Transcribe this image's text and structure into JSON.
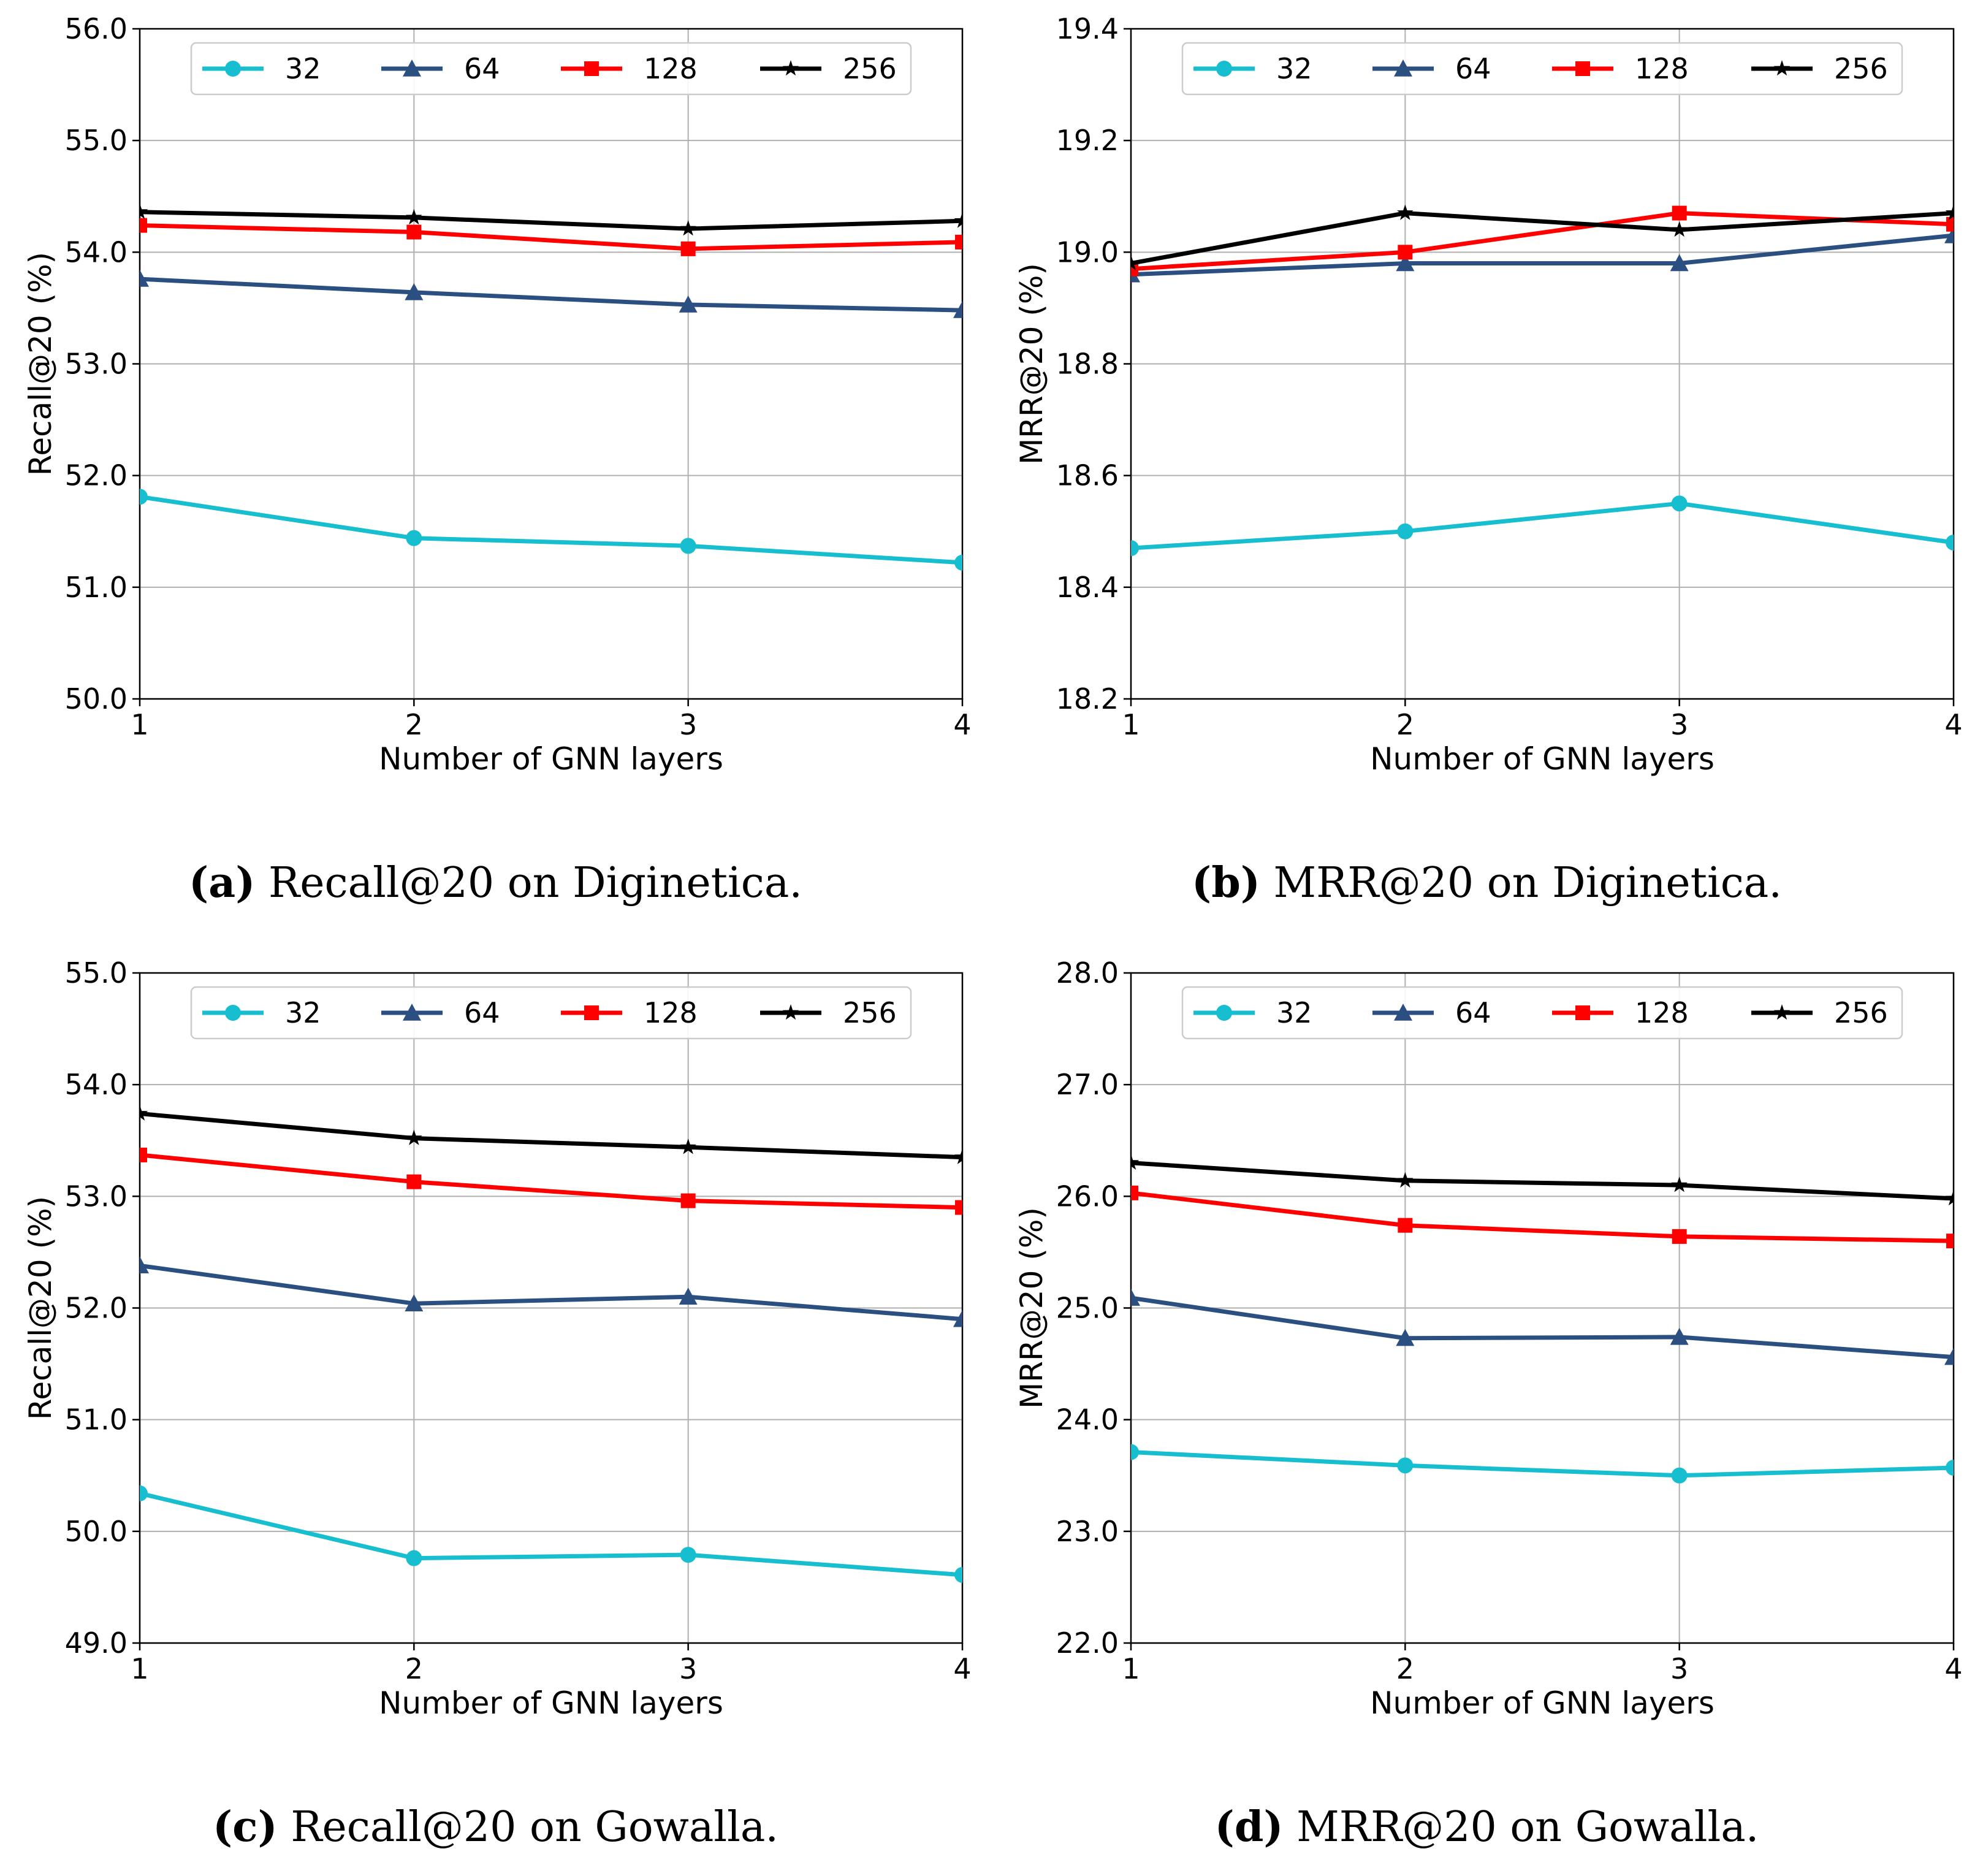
{
  "colors": {
    "s32": "#17becf",
    "s64": "#2b4f81",
    "s128": "#ff0000",
    "s256": "#000000",
    "grid": "#b0b0b0"
  },
  "captions": [
    {
      "tag": "(a)",
      "text": "Recall@20 on Diginetica."
    },
    {
      "tag": "(b)",
      "text": "MRR@20 on Diginetica."
    },
    {
      "tag": "(c)",
      "text": "Recall@20 on Gowalla."
    },
    {
      "tag": "(d)",
      "text": "MRR@20 on Gowalla."
    }
  ],
  "chart_data": [
    {
      "type": "line",
      "title": "(a) Recall@20 on Diginetica.",
      "xlabel": "Number of GNN layers",
      "ylabel": "Recall@20 (%)",
      "x": [
        1,
        2,
        3,
        4
      ],
      "xticks": [
        "1",
        "2",
        "3",
        "4"
      ],
      "ylim": [
        50.0,
        56.0
      ],
      "yticks": [
        "50.0",
        "51.0",
        "52.0",
        "53.0",
        "54.0",
        "55.0",
        "56.0"
      ],
      "legend": "top-center",
      "grid": true,
      "series": [
        {
          "name": "32",
          "marker": "circle",
          "values": [
            51.81,
            51.44,
            51.37,
            51.22
          ]
        },
        {
          "name": "64",
          "marker": "triangle",
          "values": [
            53.76,
            53.64,
            53.53,
            53.48
          ]
        },
        {
          "name": "128",
          "marker": "square",
          "values": [
            54.24,
            54.18,
            54.03,
            54.09
          ]
        },
        {
          "name": "256",
          "marker": "star",
          "values": [
            54.36,
            54.31,
            54.21,
            54.28
          ]
        }
      ]
    },
    {
      "type": "line",
      "title": "(b) MRR@20 on Diginetica.",
      "xlabel": "Number of GNN layers",
      "ylabel": "MRR@20 (%)",
      "x": [
        1,
        2,
        3,
        4
      ],
      "xticks": [
        "1",
        "2",
        "3",
        "4"
      ],
      "ylim": [
        18.2,
        19.4
      ],
      "yticks": [
        "18.2",
        "18.4",
        "18.6",
        "18.8",
        "19.0",
        "19.2",
        "19.4"
      ],
      "legend": "top-center",
      "grid": true,
      "series": [
        {
          "name": "32",
          "marker": "circle",
          "values": [
            18.47,
            18.5,
            18.55,
            18.48
          ]
        },
        {
          "name": "64",
          "marker": "triangle",
          "values": [
            18.96,
            18.98,
            18.98,
            19.03
          ]
        },
        {
          "name": "128",
          "marker": "square",
          "values": [
            18.97,
            19.0,
            19.07,
            19.05
          ]
        },
        {
          "name": "256",
          "marker": "star",
          "values": [
            18.98,
            19.07,
            19.04,
            19.07
          ]
        }
      ]
    },
    {
      "type": "line",
      "title": "(c) Recall@20 on Gowalla.",
      "xlabel": "Number of GNN layers",
      "ylabel": "Recall@20 (%)",
      "x": [
        1,
        2,
        3,
        4
      ],
      "xticks": [
        "1",
        "2",
        "3",
        "4"
      ],
      "ylim": [
        49.0,
        55.0
      ],
      "yticks": [
        "49.0",
        "50.0",
        "51.0",
        "52.0",
        "53.0",
        "54.0",
        "55.0"
      ],
      "legend": "top-center",
      "grid": true,
      "series": [
        {
          "name": "32",
          "marker": "circle",
          "values": [
            50.34,
            49.76,
            49.79,
            49.61
          ]
        },
        {
          "name": "64",
          "marker": "triangle",
          "values": [
            52.38,
            52.04,
            52.1,
            51.9
          ]
        },
        {
          "name": "128",
          "marker": "square",
          "values": [
            53.37,
            53.13,
            52.96,
            52.9
          ]
        },
        {
          "name": "256",
          "marker": "star",
          "values": [
            53.74,
            53.52,
            53.44,
            53.35
          ]
        }
      ]
    },
    {
      "type": "line",
      "title": "(d) MRR@20 on Gowalla.",
      "xlabel": "Number of GNN layers",
      "ylabel": "MRR@20 (%)",
      "x": [
        1,
        2,
        3,
        4
      ],
      "xticks": [
        "1",
        "2",
        "3",
        "4"
      ],
      "ylim": [
        22.0,
        28.0
      ],
      "yticks": [
        "22.0",
        "23.0",
        "24.0",
        "25.0",
        "26.0",
        "27.0",
        "28.0"
      ],
      "legend": "top-center",
      "grid": true,
      "series": [
        {
          "name": "32",
          "marker": "circle",
          "values": [
            23.71,
            23.59,
            23.5,
            23.57
          ]
        },
        {
          "name": "64",
          "marker": "triangle",
          "values": [
            25.09,
            24.73,
            24.74,
            24.56
          ]
        },
        {
          "name": "128",
          "marker": "square",
          "values": [
            26.03,
            25.74,
            25.64,
            25.6
          ]
        },
        {
          "name": "256",
          "marker": "star",
          "values": [
            26.3,
            26.14,
            26.1,
            25.98
          ]
        }
      ]
    }
  ]
}
